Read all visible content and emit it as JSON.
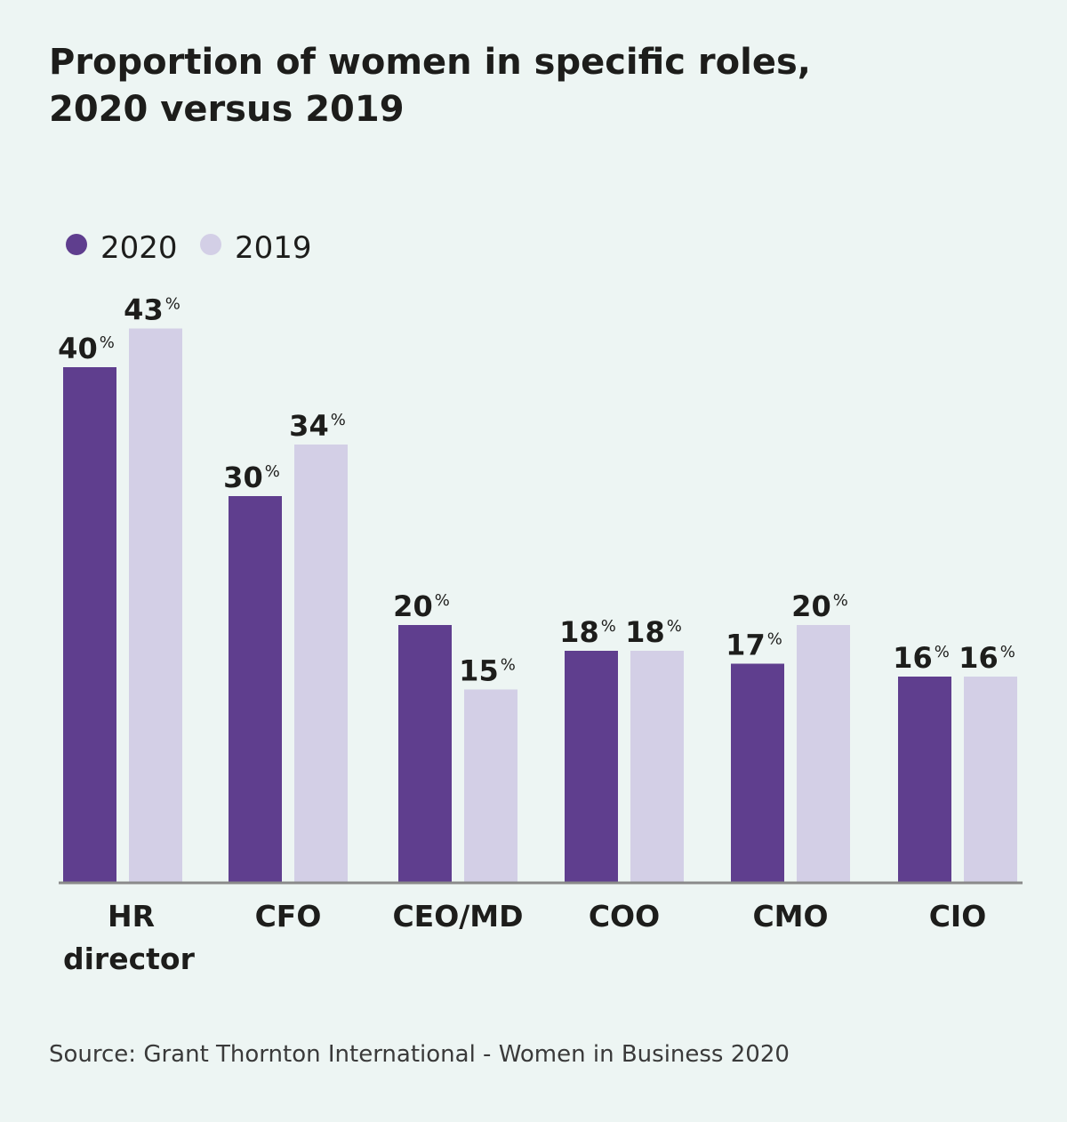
{
  "chart_data": {
    "type": "bar",
    "title_lines": [
      "Proportion of women in specific roles,",
      "2020 versus 2019"
    ],
    "categories": [
      [
        "HR",
        "director"
      ],
      [
        "CFO"
      ],
      [
        "CEO/MD"
      ],
      [
        "COO"
      ],
      [
        "CMO"
      ],
      [
        "CIO"
      ]
    ],
    "series": [
      {
        "name": "2020",
        "color": "#5f3e8e",
        "values": [
          40,
          30,
          20,
          18,
          17,
          16
        ]
      },
      {
        "name": "2019",
        "color": "#d3cfe6",
        "values": [
          43,
          34,
          15,
          18,
          20,
          16
        ]
      }
    ],
    "value_suffix": "%",
    "ylim": [
      0,
      50
    ],
    "legend": "top-left",
    "grid": false,
    "source": "Source: Grant Thornton International - Women in Business 2020"
  }
}
